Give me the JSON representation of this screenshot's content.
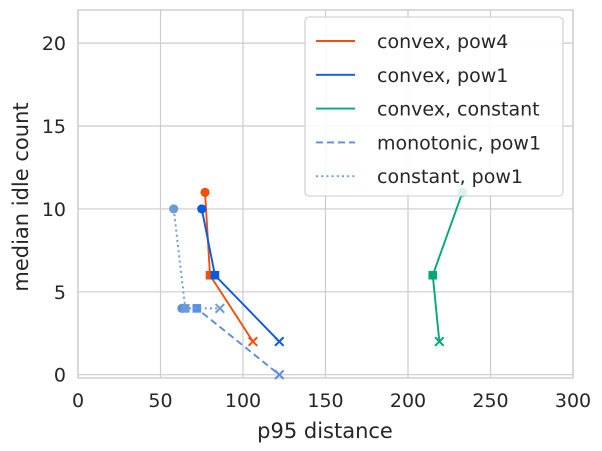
{
  "chart_data": {
    "type": "line",
    "title": "",
    "xlabel": "p95 distance",
    "ylabel": "median idle count",
    "xlim": [
      0,
      300
    ],
    "ylim": [
      -0.2,
      22
    ],
    "xticks": [
      0,
      50,
      100,
      150,
      200,
      250,
      300
    ],
    "yticks": [
      0,
      5,
      10,
      15,
      20
    ],
    "grid": true,
    "legend_position": "top-right",
    "series": [
      {
        "name": "convex, pow4",
        "color": "#f0500a",
        "line_style": "solid",
        "points": [
          {
            "x": 77,
            "y": 11,
            "marker": "circle"
          },
          {
            "x": 80,
            "y": 6,
            "marker": "square"
          },
          {
            "x": 106,
            "y": 2,
            "marker": "x"
          }
        ]
      },
      {
        "name": "convex, pow1",
        "color": "#0a5ae0",
        "line_style": "solid",
        "points": [
          {
            "x": 75,
            "y": 10,
            "marker": "circle"
          },
          {
            "x": 83,
            "y": 6,
            "marker": "square"
          },
          {
            "x": 122,
            "y": 2,
            "marker": "x"
          }
        ]
      },
      {
        "name": "convex, constant",
        "color": "#00aa78",
        "line_style": "solid",
        "points": [
          {
            "x": 233,
            "y": 11,
            "marker": "circle"
          },
          {
            "x": 215,
            "y": 6,
            "marker": "square"
          },
          {
            "x": 219,
            "y": 2,
            "marker": "x"
          }
        ]
      },
      {
        "name": "monotonic, pow1",
        "color": "#5a8ee0",
        "line_style": "dashed",
        "points": [
          {
            "x": 63,
            "y": 4,
            "marker": "circle"
          },
          {
            "x": 72,
            "y": 4,
            "marker": "square"
          },
          {
            "x": 122,
            "y": 0,
            "marker": "x"
          }
        ]
      },
      {
        "name": "constant, pow1",
        "color": "#6a9ad8",
        "line_style": "dotted",
        "points": [
          {
            "x": 58,
            "y": 10,
            "marker": "circle"
          },
          {
            "x": 65,
            "y": 4,
            "marker": "square"
          },
          {
            "x": 86,
            "y": 4,
            "marker": "x"
          }
        ]
      }
    ]
  }
}
